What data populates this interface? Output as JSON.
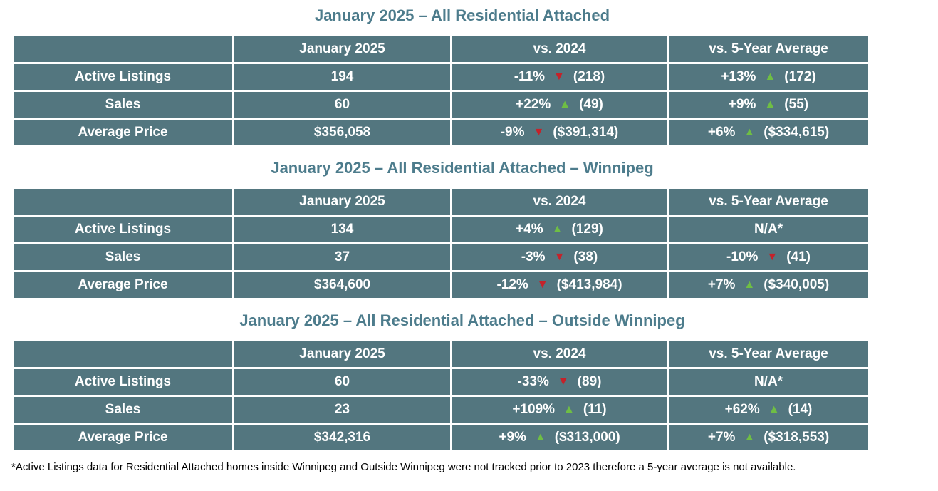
{
  "page": {
    "footnote": "*Active Listings data for Residential Attached homes inside Winnipeg and Outside Winnipeg were not tracked prior to 2023 therefore a 5-year average is not available."
  },
  "colors": {
    "cell_background": "#53767F",
    "title_text": "#4D7C8C",
    "up_arrow": "#6FBE44",
    "down_arrow": "#C4222A",
    "table_text": "#FFFFFF",
    "gridline": "#FFFFFF"
  },
  "icons": {
    "up": "▲",
    "down": "▼"
  },
  "tables": [
    {
      "title": "January 2025 – All Residential Attached",
      "headers": [
        "",
        "January 2025",
        "vs. 2024",
        "vs. 5-Year Average"
      ],
      "rows": [
        {
          "label": "Active Listings",
          "current": "194",
          "vs_2024": {
            "pct": "-11%",
            "arrow": "▼",
            "dir": "down",
            "ref": "(218)"
          },
          "vs_5yr": {
            "pct": "+13%",
            "arrow": "▲",
            "dir": "up",
            "ref": "(172)"
          }
        },
        {
          "label": "Sales",
          "current": "60",
          "vs_2024": {
            "pct": "+22%",
            "arrow": "▲",
            "dir": "up",
            "ref": "(49)"
          },
          "vs_5yr": {
            "pct": "+9%",
            "arrow": "▲",
            "dir": "up",
            "ref": "(55)"
          }
        },
        {
          "label": "Average Price",
          "current": "$356,058",
          "vs_2024": {
            "pct": "-9%",
            "arrow": "▼",
            "dir": "down",
            "ref": "($391,314)"
          },
          "vs_5yr": {
            "pct": "+6%",
            "arrow": "▲",
            "dir": "up",
            "ref": "($334,615)"
          }
        }
      ]
    },
    {
      "title": "January 2025 – All Residential Attached – Winnipeg",
      "headers": [
        "",
        "January 2025",
        "vs. 2024",
        "vs. 5-Year Average"
      ],
      "rows": [
        {
          "label": "Active Listings",
          "current": "134",
          "vs_2024": {
            "pct": "+4%",
            "arrow": "▲",
            "dir": "up",
            "ref": "(129)"
          },
          "vs_5yr": {
            "pct": "N/A*",
            "arrow": "",
            "dir": "none",
            "ref": ""
          }
        },
        {
          "label": "Sales",
          "current": "37",
          "vs_2024": {
            "pct": "-3%",
            "arrow": "▼",
            "dir": "down",
            "ref": "(38)"
          },
          "vs_5yr": {
            "pct": "-10%",
            "arrow": "▼",
            "dir": "down",
            "ref": "(41)"
          }
        },
        {
          "label": "Average Price",
          "current": "$364,600",
          "vs_2024": {
            "pct": "-12%",
            "arrow": "▼",
            "dir": "down",
            "ref": "($413,984)"
          },
          "vs_5yr": {
            "pct": "+7%",
            "arrow": "▲",
            "dir": "up",
            "ref": "($340,005)"
          }
        }
      ]
    },
    {
      "title": "January 2025 – All Residential Attached – Outside Winnipeg",
      "headers": [
        "",
        "January 2025",
        "vs. 2024",
        "vs. 5-Year Average"
      ],
      "rows": [
        {
          "label": "Active Listings",
          "current": "60",
          "vs_2024": {
            "pct": "-33%",
            "arrow": "▼",
            "dir": "down",
            "ref": "(89)"
          },
          "vs_5yr": {
            "pct": "N/A*",
            "arrow": "",
            "dir": "none",
            "ref": ""
          }
        },
        {
          "label": "Sales",
          "current": "23",
          "vs_2024": {
            "pct": "+109%",
            "arrow": "▲",
            "dir": "up",
            "ref": "(11)"
          },
          "vs_5yr": {
            "pct": "+62%",
            "arrow": "▲",
            "dir": "up",
            "ref": "(14)"
          }
        },
        {
          "label": "Average Price",
          "current": "$342,316",
          "vs_2024": {
            "pct": "+9%",
            "arrow": "▲",
            "dir": "up",
            "ref": "($313,000)"
          },
          "vs_5yr": {
            "pct": "+7%",
            "arrow": "▲",
            "dir": "up",
            "ref": "($318,553)"
          }
        }
      ]
    }
  ]
}
